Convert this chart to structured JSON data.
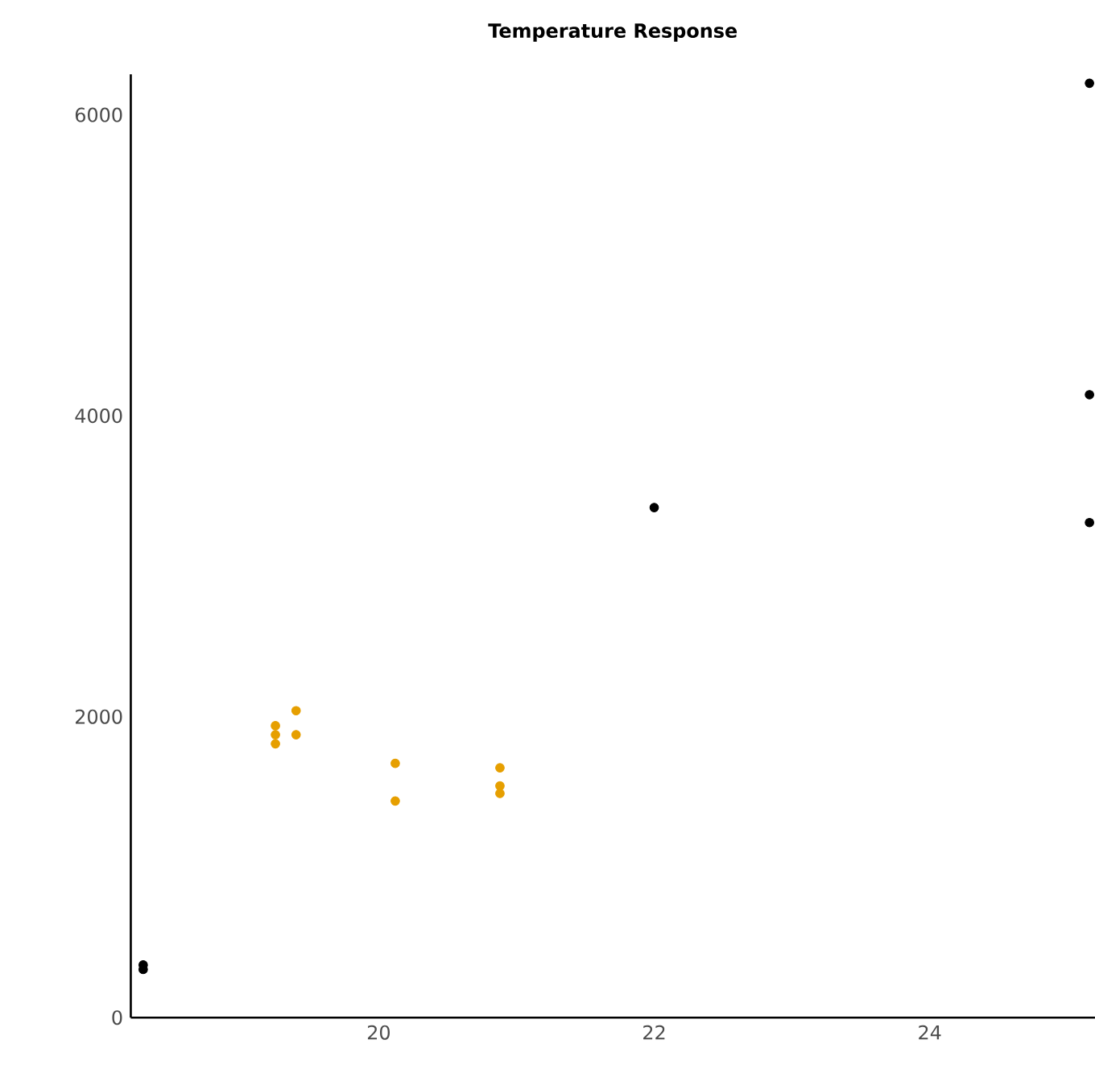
{
  "chart_data": {
    "type": "scatter",
    "title": "Temperature Response",
    "xlim": [
      18.2,
      25.2
    ],
    "ylim": [
      0,
      6270
    ],
    "xticks": [
      20,
      22,
      24
    ],
    "yticks": [
      0,
      2000,
      4000,
      6000
    ],
    "marker": "circle",
    "series": [
      {
        "color": "#000000",
        "x": [
          18.29,
          18.29,
          22.0,
          25.16,
          25.16,
          25.16
        ],
        "values": [
          350,
          320,
          3390,
          6210,
          4140,
          3290
        ]
      },
      {
        "color": "#e69f00",
        "x": [
          19.25,
          19.25,
          19.25,
          19.4,
          19.4,
          20.12,
          20.12,
          20.88,
          20.88,
          20.88
        ],
        "values": [
          1940,
          1880,
          1820,
          2040,
          1880,
          1690,
          1440,
          1660,
          1540,
          1490
        ]
      }
    ]
  }
}
